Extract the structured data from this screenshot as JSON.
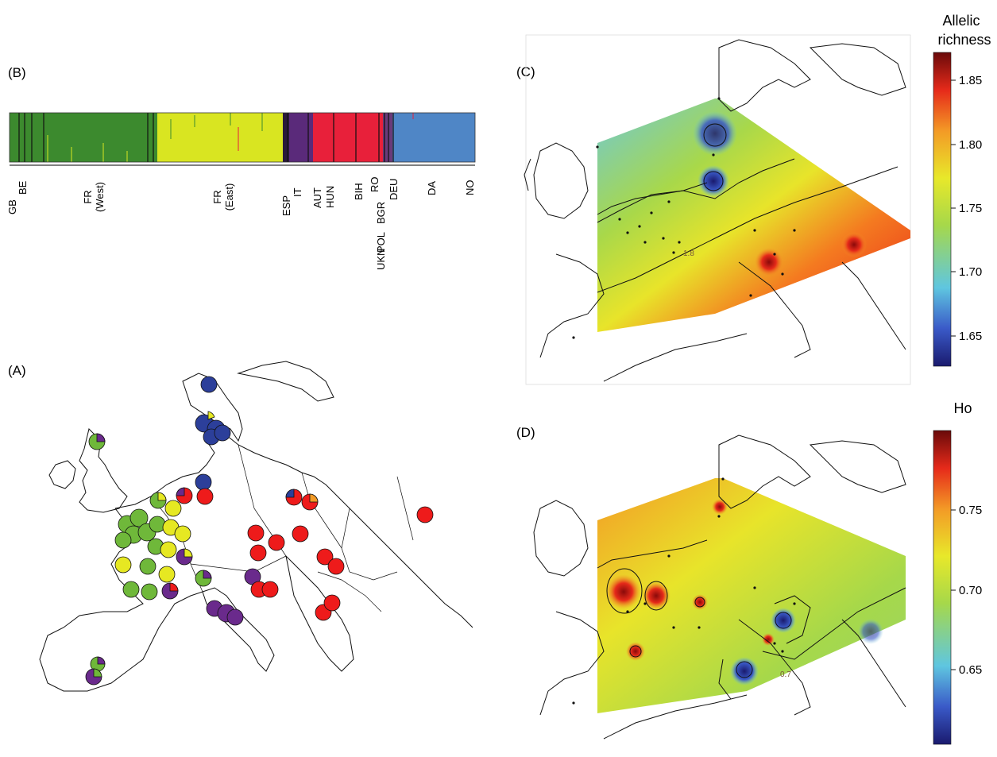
{
  "panels": {
    "A": {
      "label": "(A)"
    },
    "B": {
      "label": "(B)"
    },
    "C": {
      "label": "(C)"
    },
    "D": {
      "label": "(D)"
    }
  },
  "structure_bar": {
    "populations": [
      "GB",
      "BE",
      "FR\n(West)",
      "FR\n(East)",
      "ESP",
      "IT",
      "AUT",
      "HUN",
      "BIH",
      "RO",
      "BGR",
      "POL",
      "UKN",
      "DEU",
      "DA",
      "NO"
    ],
    "cluster_colors": {
      "green": "#3c8a2e",
      "yellow": "#d9e521",
      "purple": "#5a2a7a",
      "red": "#e8203a",
      "blue": "#4f86c6"
    }
  },
  "legend_C": {
    "title_line1": "Allelic",
    "title_line2": "richness",
    "ticks": [
      "1.85",
      "1.80",
      "1.75",
      "1.70",
      "1.65"
    ],
    "contour_label": "1.8"
  },
  "legend_D": {
    "title": "Ho",
    "ticks": [
      "0.75",
      "0.70",
      "0.65"
    ],
    "contour_label": "0.7"
  },
  "colors": {
    "green_cluster": "#6fb83a",
    "yellow_cluster": "#e6e822",
    "purple_cluster": "#6a2a8c",
    "red_cluster": "#ee1b1b",
    "blue_cluster": "#2c3f9a"
  }
}
